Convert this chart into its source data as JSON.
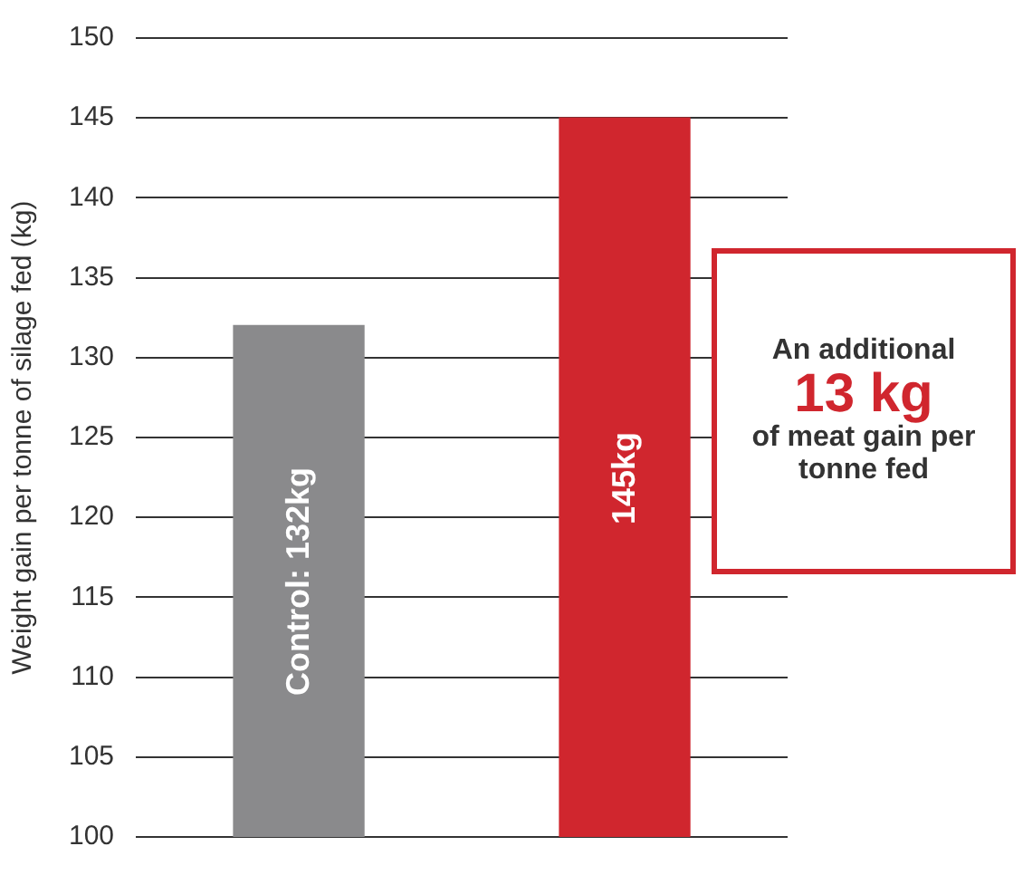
{
  "chart_data": {
    "type": "bar",
    "ylabel": "Weight gain per tonne of silage fed (kg)",
    "categories": [
      null,
      null
    ],
    "values": [
      132,
      145
    ],
    "colors": [
      "#8a8a8c",
      "#d0262e"
    ],
    "value_labels": [
      "Control: 132kg",
      "145kg"
    ],
    "ylim": [
      100,
      150
    ],
    "yticks": [
      100,
      105,
      110,
      115,
      120,
      125,
      130,
      135,
      140,
      145,
      150
    ],
    "grid": "y",
    "annotations": [
      "An additional",
      "13 kg",
      "of meat gain per tonne fed"
    ]
  }
}
